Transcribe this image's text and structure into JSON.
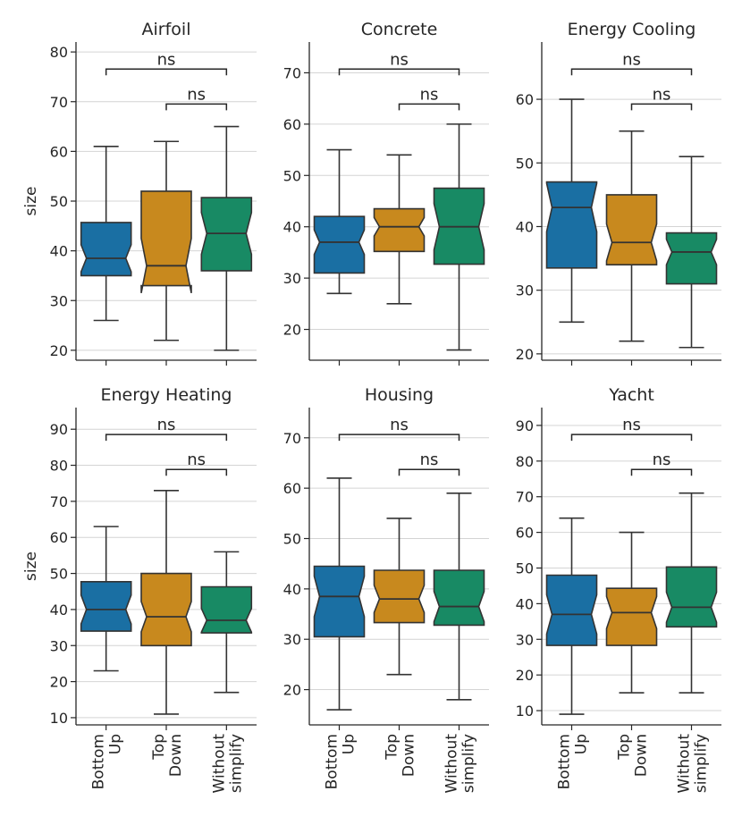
{
  "chart_data": {
    "type": "boxplot-grid",
    "ylabel": "size",
    "categories": [
      "Bottom Up",
      "Top Down",
      "Without simplify"
    ],
    "category_label_lines": [
      [
        "Bottom",
        "Up"
      ],
      [
        "Top",
        "Down"
      ],
      [
        "Without",
        "simplify"
      ]
    ],
    "colors": [
      "#1a6fa3",
      "#c8891e",
      "#188a64"
    ],
    "significance_pairs": [
      [
        0,
        2
      ],
      [
        1,
        2
      ]
    ],
    "panels": [
      {
        "title": "Airfoil",
        "ylim": [
          18,
          82
        ],
        "yticks": [
          20,
          30,
          40,
          50,
          60,
          70,
          80
        ],
        "boxes": [
          {
            "q1": 35,
            "median": 38.5,
            "q3": 45.7,
            "whislo": 26,
            "whishi": 61,
            "notch_lo": 35.8,
            "notch_hi": 41.2
          },
          {
            "q1": 33,
            "median": 37,
            "q3": 52,
            "whislo": 22,
            "whishi": 62,
            "notch_lo": 31.5,
            "notch_hi": 42.5
          },
          {
            "q1": 36,
            "median": 43.5,
            "q3": 50.7,
            "whislo": 20,
            "whishi": 65,
            "notch_lo": 39.3,
            "notch_hi": 47.7
          }
        ],
        "annotations": [
          "ns",
          "ns"
        ]
      },
      {
        "title": "Concrete",
        "ylim": [
          14,
          76
        ],
        "yticks": [
          20,
          30,
          40,
          50,
          60,
          70
        ],
        "boxes": [
          {
            "q1": 31,
            "median": 37,
            "q3": 42,
            "whislo": 27,
            "whishi": 55,
            "notch_lo": 34.6,
            "notch_hi": 39.4
          },
          {
            "q1": 35.2,
            "median": 40,
            "q3": 43.5,
            "whislo": 25,
            "whishi": 54,
            "notch_lo": 38.2,
            "notch_hi": 41.8
          },
          {
            "q1": 32.7,
            "median": 40,
            "q3": 47.5,
            "whislo": 16,
            "whishi": 60,
            "notch_lo": 35.5,
            "notch_hi": 44.5
          }
        ],
        "annotations": [
          "ns",
          "ns"
        ]
      },
      {
        "title": "Energy Cooling",
        "ylim": [
          19,
          69
        ],
        "yticks": [
          20,
          30,
          40,
          50,
          60
        ],
        "boxes": [
          {
            "q1": 33.5,
            "median": 43,
            "q3": 47,
            "whislo": 25,
            "whishi": 60,
            "notch_lo": 39.2,
            "notch_hi": 46.8
          },
          {
            "q1": 34,
            "median": 37.5,
            "q3": 45,
            "whislo": 22,
            "whishi": 55,
            "notch_lo": 34.6,
            "notch_hi": 40.4
          },
          {
            "q1": 31,
            "median": 36,
            "q3": 39,
            "whislo": 21,
            "whishi": 51,
            "notch_lo": 34,
            "notch_hi": 38
          }
        ],
        "annotations": [
          "ns",
          "ns"
        ]
      },
      {
        "title": "Energy Heating",
        "ylim": [
          8,
          96
        ],
        "yticks": [
          10,
          20,
          30,
          40,
          50,
          60,
          70,
          80,
          90
        ],
        "boxes": [
          {
            "q1": 34,
            "median": 40,
            "q3": 47.7,
            "whislo": 23,
            "whishi": 63,
            "notch_lo": 36,
            "notch_hi": 44
          },
          {
            "q1": 30,
            "median": 38,
            "q3": 50,
            "whislo": 11,
            "whishi": 73,
            "notch_lo": 33.8,
            "notch_hi": 42.2
          },
          {
            "q1": 33.5,
            "median": 37,
            "q3": 46.3,
            "whislo": 17,
            "whishi": 56,
            "notch_lo": 33.7,
            "notch_hi": 40.3
          }
        ],
        "annotations": [
          "ns",
          "ns"
        ]
      },
      {
        "title": "Housing",
        "ylim": [
          13,
          76
        ],
        "yticks": [
          20,
          30,
          40,
          50,
          60,
          70
        ],
        "boxes": [
          {
            "q1": 30.5,
            "median": 38.5,
            "q3": 44.5,
            "whislo": 16,
            "whishi": 62,
            "notch_lo": 34.5,
            "notch_hi": 42.5
          },
          {
            "q1": 33.3,
            "median": 38,
            "q3": 43.7,
            "whislo": 23,
            "whishi": 54,
            "notch_lo": 35.3,
            "notch_hi": 40.7
          },
          {
            "q1": 32.8,
            "median": 36.5,
            "q3": 43.7,
            "whislo": 18,
            "whishi": 59,
            "notch_lo": 33.5,
            "notch_hi": 39.5
          }
        ],
        "annotations": [
          "ns",
          "ns"
        ]
      },
      {
        "title": "Yacht",
        "ylim": [
          6,
          95
        ],
        "yticks": [
          10,
          20,
          30,
          40,
          50,
          60,
          70,
          80,
          90
        ],
        "boxes": [
          {
            "q1": 28.3,
            "median": 37,
            "q3": 48,
            "whislo": 9,
            "whishi": 64,
            "notch_lo": 31.5,
            "notch_hi": 42.5
          },
          {
            "q1": 28.3,
            "median": 37.5,
            "q3": 44.3,
            "whislo": 15,
            "whishi": 60,
            "notch_lo": 33,
            "notch_hi": 42
          },
          {
            "q1": 33.5,
            "median": 39,
            "q3": 50.3,
            "whislo": 15,
            "whishi": 71,
            "notch_lo": 34.8,
            "notch_hi": 43.2
          }
        ],
        "annotations": [
          "ns",
          "ns"
        ]
      }
    ]
  }
}
